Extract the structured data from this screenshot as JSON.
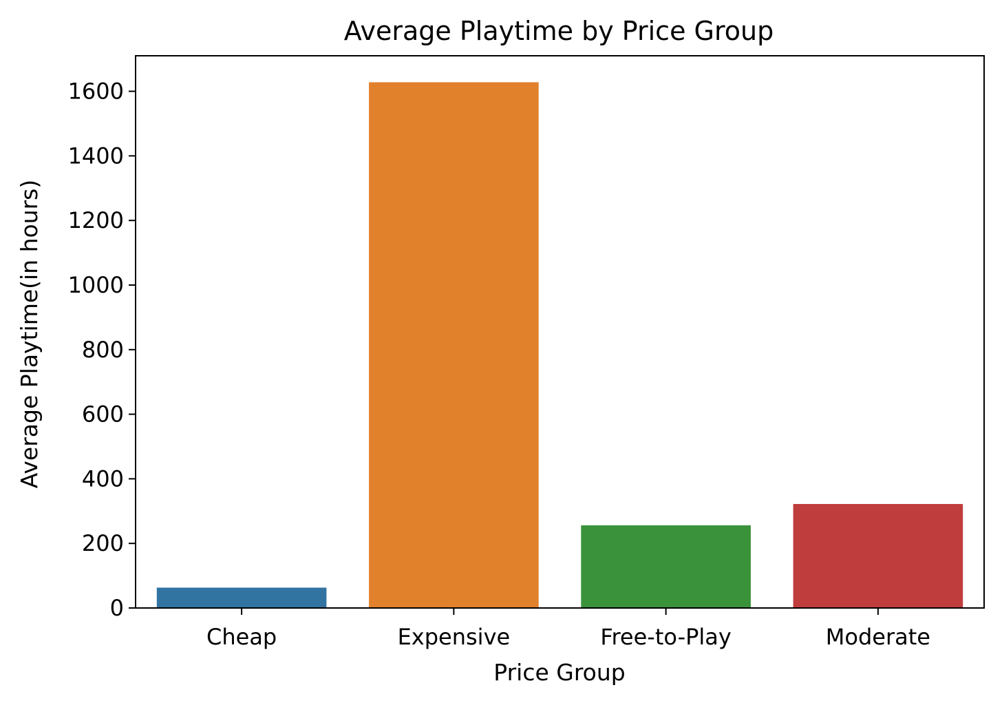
{
  "chart_data": {
    "type": "bar",
    "title": "Average Playtime by Price Group",
    "xlabel": "Price Group",
    "ylabel": "Average Playtime(in hours)",
    "categories": [
      "Cheap",
      "Expensive",
      "Free-to-Play",
      "Moderate"
    ],
    "values": [
      63,
      1628,
      256,
      322
    ],
    "colors": [
      "#3274a1",
      "#e1812c",
      "#3a923a",
      "#c03d3e"
    ],
    "ylim": [
      0,
      1710
    ],
    "yticks": [
      0,
      200,
      400,
      600,
      800,
      1000,
      1200,
      1400,
      1600
    ],
    "grid": false,
    "legend": "none"
  }
}
